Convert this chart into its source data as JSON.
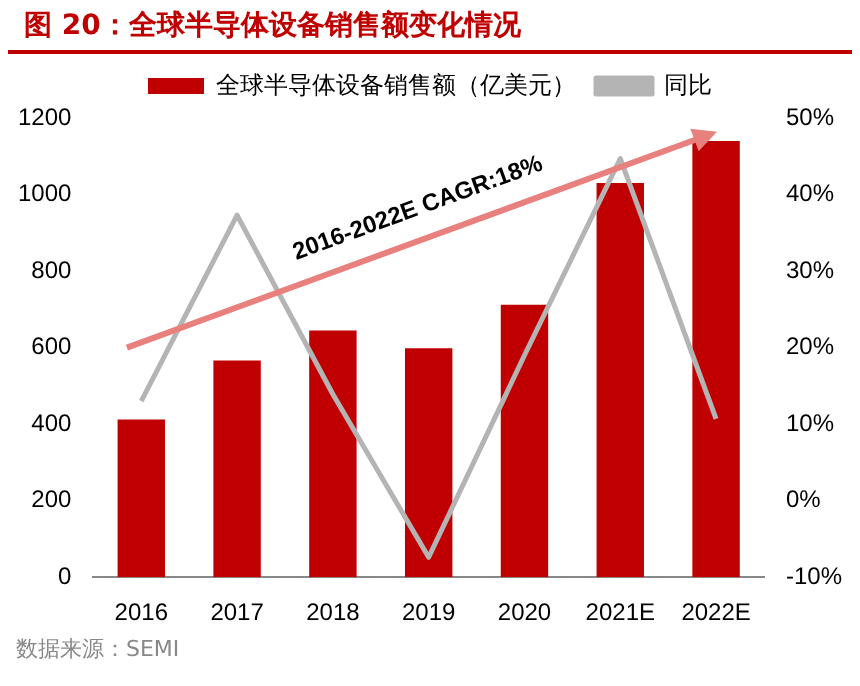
{
  "chart_data": {
    "type": "bar",
    "title": "图 20：全球半导体设备销售额变化情况",
    "categories": [
      "2016",
      "2017",
      "2018",
      "2019",
      "2020",
      "2021E",
      "2022E"
    ],
    "series": [
      {
        "name": "全球半导体设备销售额（亿美元）",
        "color": "#c00000",
        "values": [
          412,
          566,
          645,
          598,
          712,
          1030,
          1140
        ]
      },
      {
        "name": "同比",
        "type": "line",
        "axis": "y2",
        "color": "#b4b4b4",
        "values": [
          13,
          37.3,
          13.9,
          -7.4,
          19,
          44.7,
          10.7
        ]
      }
    ],
    "ylim": [
      0,
      1200
    ],
    "yticks": [
      0,
      200,
      400,
      600,
      800,
      1000,
      1200
    ],
    "y2lim": [
      -10,
      50
    ],
    "y2ticks": [
      {
        "value": -10,
        "label": "-10%"
      },
      {
        "value": 0,
        "label": "0%"
      },
      {
        "value": 10,
        "label": "10%"
      },
      {
        "value": 20,
        "label": "20%"
      },
      {
        "value": 30,
        "label": "30%"
      },
      {
        "value": 40,
        "label": "40%"
      },
      {
        "value": 50,
        "label": "50%"
      }
    ],
    "annotations": [
      "2016-2022E CAGR:18%",
      "数据来源：SEMI"
    ],
    "legend": "top",
    "grid": false,
    "marker": "none"
  }
}
